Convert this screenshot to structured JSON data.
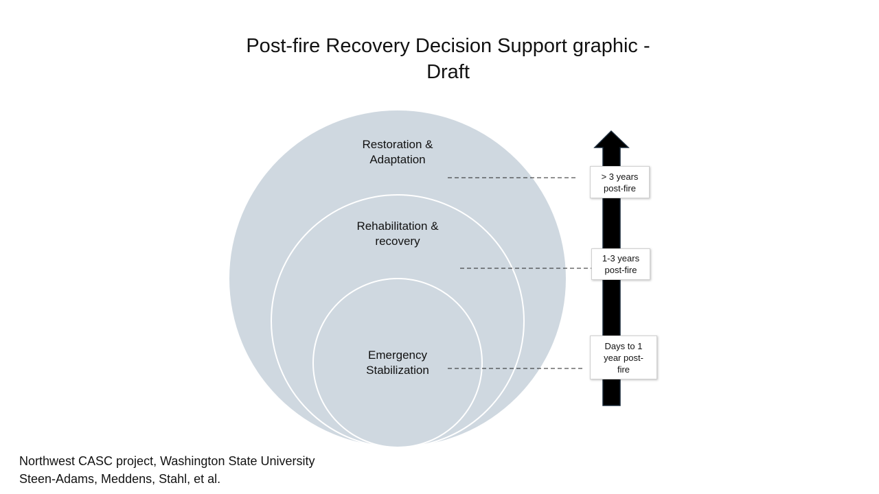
{
  "title": {
    "line1": "Post-fire Recovery Decision Support graphic -",
    "line2": "Draft"
  },
  "diagram": {
    "circle_fill": "#cfd8e0",
    "inner_stroke": "#ffffff",
    "arrow_color": "#000000",
    "stages": [
      {
        "line1": "Restoration &",
        "line2": "Adaptation"
      },
      {
        "line1": "Rehabilitation &",
        "line2": "recovery"
      },
      {
        "line1": "Emergency",
        "line2": "Stabilization"
      }
    ],
    "timeframes": [
      {
        "line1": "> 3 years",
        "line2": "post-fire",
        "line3": ""
      },
      {
        "line1": "1-3 years",
        "line2": "post-fire",
        "line3": ""
      },
      {
        "line1": "Days to 1",
        "line2": "year post-",
        "line3": "fire"
      }
    ]
  },
  "credits": {
    "line1": "Northwest CASC project, Washington State University",
    "line2": "Steen-Adams, Meddens, Stahl, et al."
  }
}
